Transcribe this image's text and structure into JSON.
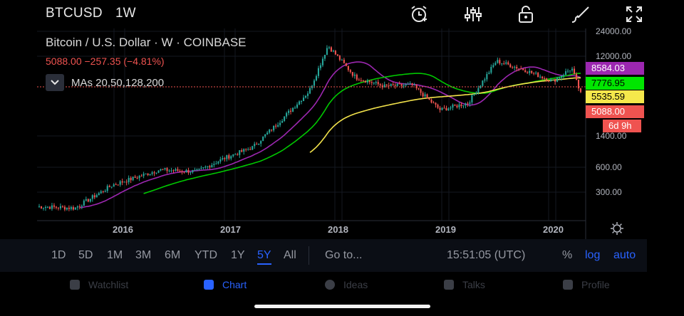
{
  "header": {
    "symbol": "BTCUSD",
    "interval": "1W",
    "tools": [
      "alarm-clock-icon",
      "indicators-icon",
      "lock-icon",
      "draw-brush-icon",
      "fullscreen-icon"
    ]
  },
  "legend": {
    "title": "Bitcoin / U.S. Dollar · W · COINBASE",
    "price_line": "5088.00  −257.35 (−4.81%)",
    "ma_label": "MAs 20,50,128,200"
  },
  "price_axis": {
    "ticks": [
      "24000.00",
      "12000.00",
      "1400.00",
      "600.00",
      "300.00"
    ],
    "tags": [
      {
        "label": "8584.03",
        "color": "#9c27b0",
        "text_color": "#ffffff"
      },
      {
        "label": "7776.95",
        "color": "#00e600",
        "text_color": "#000000"
      },
      {
        "label": "5535.59",
        "color": "#f5e84b",
        "text_color": "#000000"
      },
      {
        "label": "5088.00",
        "color": "#ef5350",
        "text_color": "#ffffff"
      },
      {
        "label": "6d 9h",
        "color": "#ef5350",
        "text_color": "#ffffff"
      }
    ]
  },
  "time_axis": {
    "ticks": [
      "2016",
      "2017",
      "2018",
      "2019",
      "2020"
    ]
  },
  "colors": {
    "up": "#26a69a",
    "down": "#ef5350",
    "ma20": "#9c27b0",
    "ma50": "#00c800",
    "ma128": "#f2e24b",
    "ma200": "#d6a86e",
    "accent": "#2962ff"
  },
  "chart_data": {
    "type": "line",
    "title": "Bitcoin / U.S. Dollar · W · COINBASE",
    "y_scale": "log",
    "ylim": [
      180,
      28000
    ],
    "x": [
      "2015-05",
      "2015-09",
      "2016-01",
      "2016-06",
      "2016-10",
      "2017-01",
      "2017-04",
      "2017-07",
      "2017-10",
      "2017-12",
      "2018-03",
      "2018-06",
      "2018-09",
      "2018-12",
      "2019-03",
      "2019-06",
      "2019-09",
      "2019-12",
      "2020-02",
      "2020-03"
    ],
    "series": [
      {
        "name": "BTCUSD",
        "values": [
          240,
          230,
          430,
          650,
          620,
          900,
          1200,
          2500,
          5500,
          19000,
          8000,
          6300,
          6500,
          3300,
          4000,
          12500,
          9800,
          7200,
          10300,
          5088
        ]
      }
    ]
  },
  "time_ranges": {
    "items": [
      "1D",
      "5D",
      "1M",
      "3M",
      "6M",
      "YTD",
      "1Y",
      "5Y",
      "All"
    ],
    "active": "5Y",
    "goto": "Go to...",
    "clock": "15:51:05 (UTC)",
    "percent": "%",
    "log": "log",
    "auto": "auto"
  },
  "bottom_nav": {
    "items": [
      "Watchlist",
      "Chart",
      "Ideas",
      "Talks",
      "Profile"
    ],
    "active": "Chart"
  }
}
